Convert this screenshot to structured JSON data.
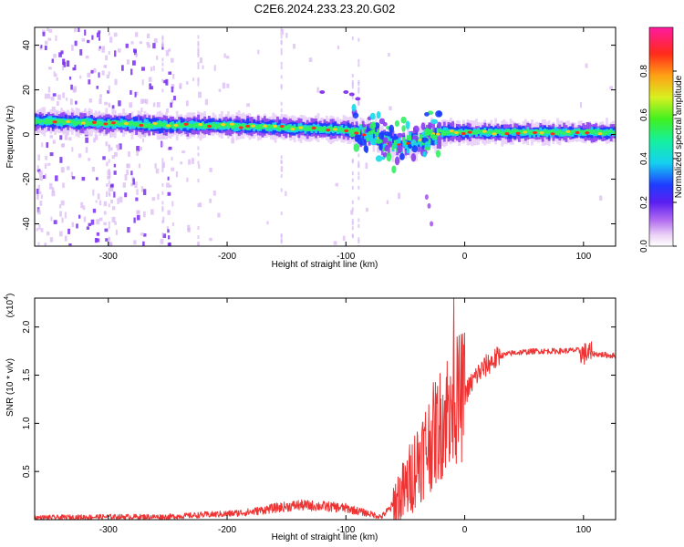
{
  "figure": {
    "title": "C2E6.2024.233.23.20.G02"
  },
  "chart_data": [
    {
      "type": "heatmap",
      "title": "C2E6.2024.233.23.20.G02",
      "xlabel": "Height of straight line (km)",
      "ylabel": "Frequency (Hz)",
      "xlim": [
        -362,
        127
      ],
      "ylim": [
        -50,
        48
      ],
      "xticks": [
        -300,
        -200,
        -100,
        0,
        100
      ],
      "xtick_labels": [
        "-300",
        "-200",
        "-100",
        "0",
        "100"
      ],
      "yticks": [
        -40,
        -20,
        0,
        20,
        40
      ],
      "ytick_labels": [
        "-40",
        "-20",
        "0",
        "20",
        "40"
      ],
      "colorbar": {
        "label": "Normalized spectral amplitude",
        "range": [
          0,
          1
        ],
        "ticks": [
          0.0,
          0.2,
          0.4,
          0.6,
          0.8
        ],
        "tick_labels": [
          "0.0",
          "0.2",
          "0.4",
          "0.6",
          "0.8"
        ]
      },
      "ridge": {
        "x": [
          -350,
          -300,
          -250,
          -200,
          -150,
          -120,
          -100,
          -80,
          -60,
          -40,
          -20,
          0,
          50,
          100,
          127
        ],
        "y": [
          6,
          5,
          4,
          4,
          3,
          2.5,
          2,
          0,
          -5,
          -3,
          1,
          1,
          1,
          1,
          1
        ]
      },
      "grid": false
    },
    {
      "type": "line",
      "xlabel": "Height of straight line (km)",
      "ylabel": "SNR (10 * v/v)",
      "y_multiplier": "(x10",
      "y_multiplier_exp": "4",
      "xlim": [
        -362,
        127
      ],
      "ylim": [
        0,
        2.3
      ],
      "xticks": [
        -300,
        -200,
        -100,
        0,
        100
      ],
      "xtick_labels": [
        "-300",
        "-200",
        "-100",
        "0",
        "100"
      ],
      "yticks": [
        0.5,
        1.0,
        1.5,
        2.0
      ],
      "ytick_labels": [
        "0.5",
        "1.0",
        "1.5",
        "2.0"
      ],
      "series": [
        {
          "color": "#ee3333",
          "x": [
            -362,
            -300,
            -250,
            -220,
            -200,
            -180,
            -160,
            -140,
            -120,
            -100,
            -80,
            -70,
            -60,
            -50,
            -40,
            -30,
            -20,
            -15,
            -10,
            -5,
            0,
            10,
            20,
            30,
            40,
            60,
            80,
            95,
            100,
            105,
            110,
            127
          ],
          "y": [
            0.02,
            0.03,
            0.03,
            0.05,
            0.06,
            0.08,
            0.12,
            0.15,
            0.14,
            0.12,
            0.06,
            0.03,
            0.15,
            0.3,
            0.6,
            0.8,
            1.0,
            1.15,
            1.2,
            1.25,
            1.3,
            1.5,
            1.62,
            1.7,
            1.73,
            1.75,
            1.75,
            1.76,
            1.72,
            1.73,
            1.72,
            1.7
          ]
        }
      ],
      "grid": false
    }
  ]
}
